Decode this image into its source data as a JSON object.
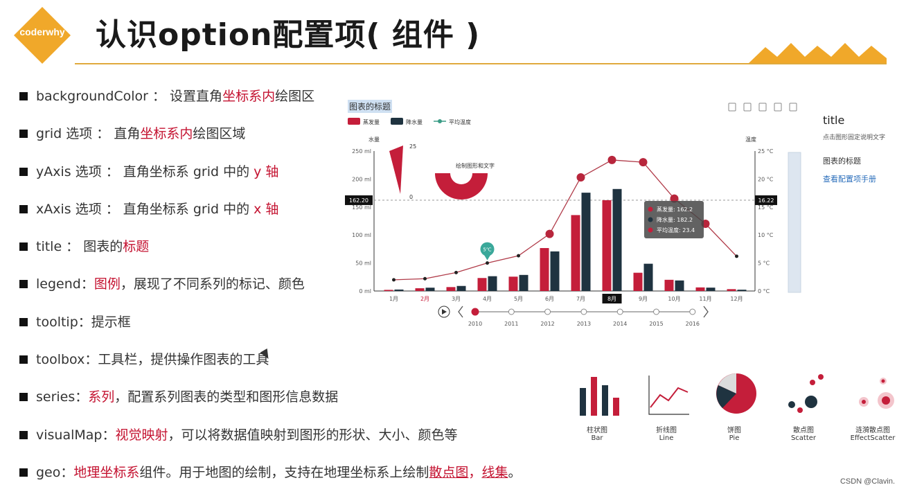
{
  "header": {
    "logo_text": "coderwhy",
    "title": "认识option配置项( 组件 )"
  },
  "bullets": [
    {
      "parts": [
        {
          "t": "backgroundColor ： 设置直角"
        },
        {
          "t": "坐标系内",
          "hl": true
        },
        {
          "t": "绘图区"
        }
      ]
    },
    {
      "parts": [
        {
          "t": "grid 选项 ： 直角"
        },
        {
          "t": "坐标系内",
          "hl": true
        },
        {
          "t": "绘图区域"
        }
      ]
    },
    {
      "parts": [
        {
          "t": "yAxis 选项 ： 直角坐标系 grid 中的 "
        },
        {
          "t": "y 轴",
          "hl": true
        }
      ]
    },
    {
      "parts": [
        {
          "t": "xAxis 选项 ： 直角坐标系 grid 中的 "
        },
        {
          "t": "x 轴",
          "hl": true
        }
      ]
    },
    {
      "parts": [
        {
          "t": "title ： 图表的"
        },
        {
          "t": "标题",
          "hl": true
        }
      ]
    },
    {
      "parts": [
        {
          "t": "legend："
        },
        {
          "t": "图例",
          "hl": true
        },
        {
          "t": "，展现了不同系列的标记、颜色"
        }
      ]
    },
    {
      "parts": [
        {
          "t": "tooltip：提示框"
        }
      ]
    },
    {
      "parts": [
        {
          "t": "toolbox：工具栏，提供操作图表的工具"
        }
      ]
    },
    {
      "parts": [
        {
          "t": "series："
        },
        {
          "t": "系列",
          "hl": true
        },
        {
          "t": "，配置系列图表的类型和图形信息数据"
        }
      ]
    },
    {
      "parts": [
        {
          "t": "visualMap："
        },
        {
          "t": "视觉映射",
          "hl": true
        },
        {
          "t": "，可以将数据值映射到图形的形状、大小、颜色等"
        }
      ]
    },
    {
      "parts": [
        {
          "t": "geo："
        },
        {
          "t": "地理坐标系",
          "hl": true
        },
        {
          "t": "组件。用于地图的绘制，支持在地理坐标系上绘制"
        },
        {
          "t": "散点图",
          "hl": true,
          "ul": true
        },
        {
          "t": "，",
          "hl": true
        },
        {
          "t": "线集",
          "hl": true,
          "ul": true
        },
        {
          "t": "。"
        }
      ]
    }
  ],
  "chart_data": {
    "type": "bar",
    "title": "图表的标题",
    "legend": [
      "蒸发量",
      "降水量",
      "平均温度"
    ],
    "categories": [
      "1月",
      "2月",
      "3月",
      "4月",
      "5月",
      "6月",
      "7月",
      "8月",
      "9月",
      "10月",
      "11月",
      "12月"
    ],
    "series": [
      {
        "name": "蒸发量",
        "type": "bar",
        "color": "#c41e3a",
        "values": [
          2.0,
          4.9,
          7.0,
          23.2,
          25.6,
          76.7,
          135.6,
          162.2,
          32.6,
          20.0,
          6.4,
          3.3
        ]
      },
      {
        "name": "降水量",
        "type": "bar",
        "color": "#1f3340",
        "values": [
          2.6,
          5.9,
          9.0,
          26.4,
          28.7,
          70.7,
          175.6,
          182.2,
          48.7,
          18.8,
          6.0,
          2.3
        ]
      },
      {
        "name": "平均温度",
        "type": "line",
        "color": "#b03a48",
        "values": [
          2.0,
          2.2,
          3.3,
          5.0,
          6.3,
          10.2,
          20.3,
          23.4,
          23.0,
          16.5,
          12.0,
          6.2
        ]
      }
    ],
    "y_left": {
      "name": "水量",
      "ticks": [
        "250 ml",
        "200 ml",
        "150 ml",
        "100 ml",
        "50 ml",
        "0 ml"
      ],
      "range": [
        0,
        250
      ]
    },
    "y_right": {
      "name": "温度",
      "ticks": [
        "25 °C",
        "20 °C",
        "15 °C",
        "10 °C",
        "5 °C",
        "0 °C"
      ],
      "range": [
        0,
        25
      ]
    },
    "axis_pointer_left": "162.20",
    "axis_pointer_right": "16.22",
    "selected_category": "8月",
    "tooltip": {
      "rows": [
        {
          "label": "蒸发量: 162.2",
          "color": "#c41e3a"
        },
        {
          "label": "降水量: 182.2",
          "color": "#1f3340"
        },
        {
          "label": "平均温度: 23.4",
          "color": "#c41e3a"
        }
      ]
    },
    "markpoint_label": "5℃",
    "graphic_text": "绘制图形和文字",
    "gauge_labels": [
      "25",
      "0"
    ],
    "timeline": [
      "2010",
      "2011",
      "2012",
      "2013",
      "2014",
      "2015",
      "2016"
    ],
    "timeline_current": "2010",
    "grid": false,
    "legend_position": "top-left"
  },
  "toolbox": [
    "data-view-icon",
    "line-icon",
    "bar-icon",
    "restore-icon",
    "save-icon"
  ],
  "side": {
    "title": "title",
    "desc": "点击图形固定说明文字",
    "chart_title": "图表的标题",
    "link": "查看配置项手册"
  },
  "chart_types": [
    {
      "cn": "柱状图",
      "en": "Bar",
      "icon": "bar-chart-icon"
    },
    {
      "cn": "折线图",
      "en": "Line",
      "icon": "line-chart-icon"
    },
    {
      "cn": "饼图",
      "en": "Pie",
      "icon": "pie-chart-icon"
    },
    {
      "cn": "散点图",
      "en": "Scatter",
      "icon": "scatter-chart-icon"
    },
    {
      "cn": "涟漪散点图",
      "en": "EffectScatter",
      "icon": "effect-scatter-icon"
    }
  ],
  "watermark": "CSDN @Clavin.",
  "colors": {
    "accent": "#c41230",
    "brand": "#f0a82a",
    "dark": "#1f3340"
  }
}
